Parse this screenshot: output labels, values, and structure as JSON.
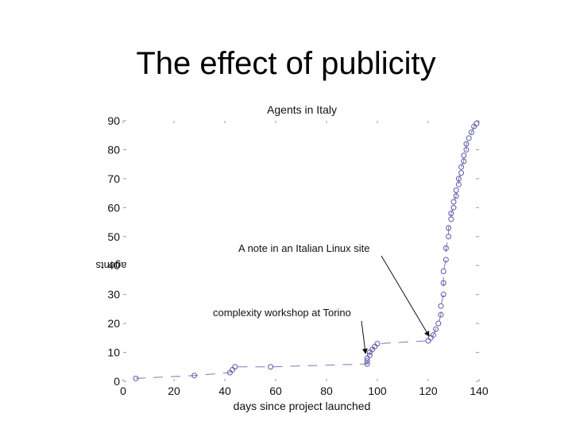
{
  "slide": {
    "title": "The effect of publicity"
  },
  "chart_data": {
    "type": "scatter",
    "title": "Agents in Italy",
    "xlabel": "days since project launched",
    "ylabel": "agents",
    "xlim": [
      0,
      140
    ],
    "ylim": [
      0,
      90
    ],
    "xticks": [
      0,
      20,
      40,
      60,
      80,
      100,
      120,
      140
    ],
    "yticks": [
      0,
      10,
      20,
      30,
      40,
      50,
      60,
      70,
      80,
      90
    ],
    "grid": false,
    "series": [
      {
        "color": "#5a5aa8",
        "marker": "circle-open",
        "line": "dashed",
        "points": [
          [
            5,
            1
          ],
          [
            28,
            2
          ],
          [
            42,
            3
          ],
          [
            43,
            4
          ],
          [
            44,
            5
          ],
          [
            58,
            5
          ],
          [
            96,
            6
          ],
          [
            96,
            7
          ],
          [
            96,
            8
          ],
          [
            97,
            9
          ],
          [
            97,
            10
          ],
          [
            98,
            11
          ],
          [
            99,
            12
          ],
          [
            100,
            13
          ],
          [
            120,
            14
          ],
          [
            121,
            15
          ],
          [
            122,
            16
          ],
          [
            123,
            18
          ],
          [
            124,
            20
          ],
          [
            125,
            23
          ],
          [
            125,
            26
          ],
          [
            126,
            30
          ],
          [
            126,
            34
          ],
          [
            126,
            38
          ],
          [
            127,
            42
          ],
          [
            127,
            46
          ],
          [
            128,
            50
          ],
          [
            128,
            53
          ],
          [
            129,
            56
          ],
          [
            129,
            58
          ],
          [
            130,
            60
          ],
          [
            130,
            62
          ],
          [
            131,
            64
          ],
          [
            131,
            66
          ],
          [
            132,
            68
          ],
          [
            132,
            70
          ],
          [
            133,
            72
          ],
          [
            133,
            74
          ],
          [
            134,
            76
          ],
          [
            134,
            78
          ],
          [
            135,
            80
          ],
          [
            135,
            82
          ],
          [
            136,
            84
          ],
          [
            137,
            86
          ],
          [
            138,
            88
          ],
          [
            139,
            89
          ]
        ]
      }
    ],
    "annotations": [
      {
        "text": "A note in an Italian Linux site",
        "x": 121,
        "y": 15
      },
      {
        "text": "complexity workshop at Torino",
        "x": 96,
        "y": 9
      }
    ]
  }
}
